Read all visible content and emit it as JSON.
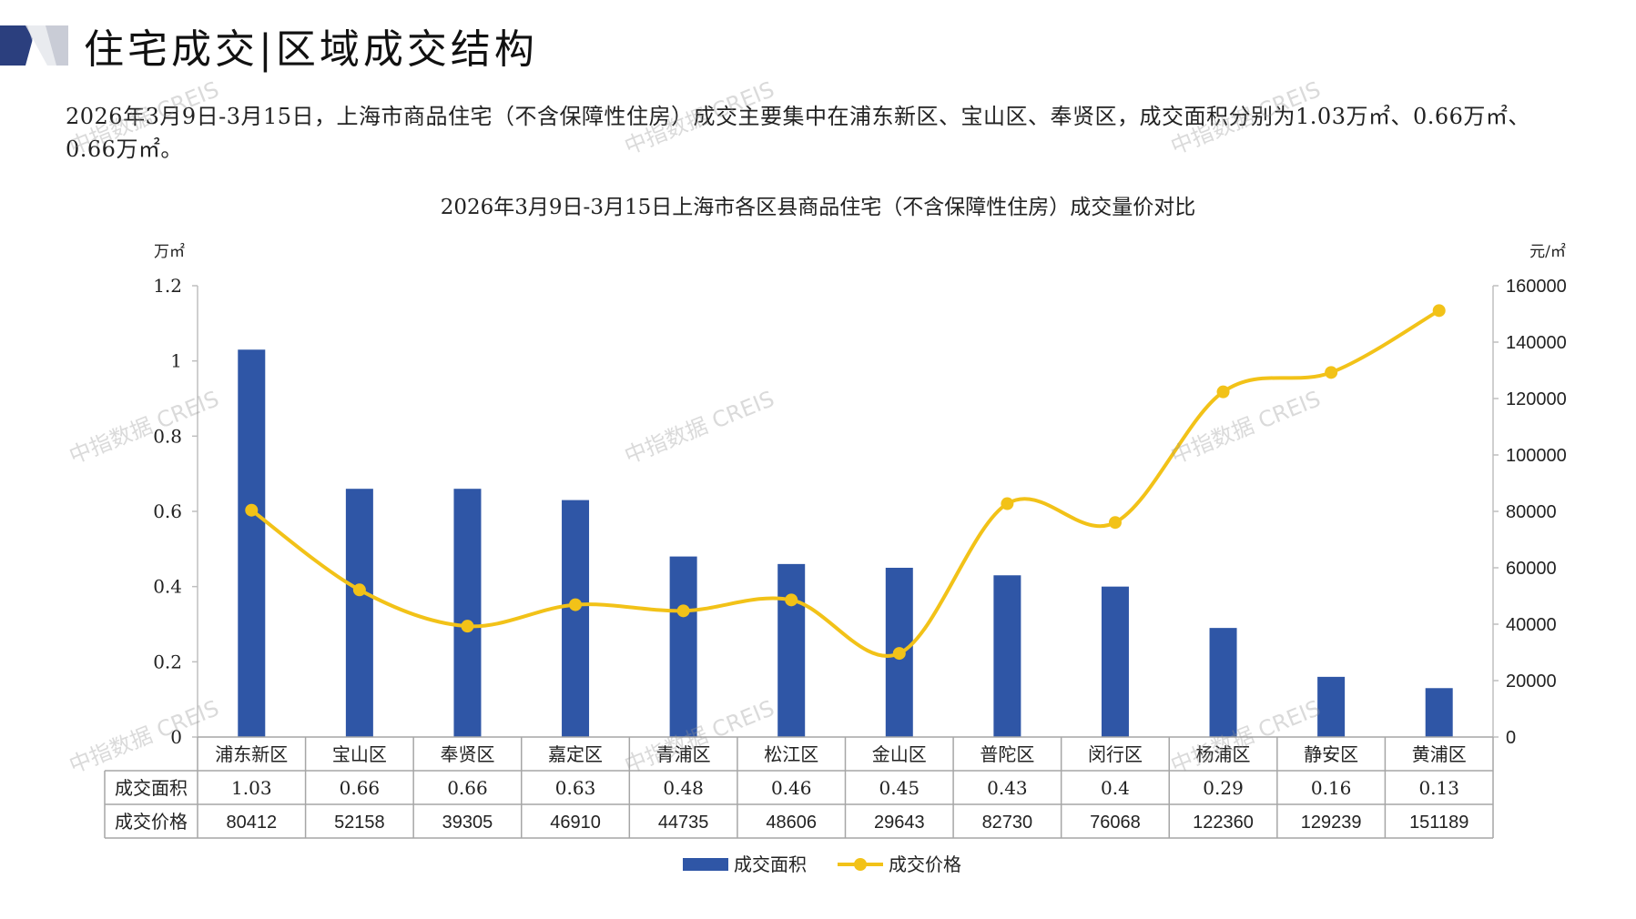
{
  "header": {
    "title": "住宅成交|区域成交结构"
  },
  "description": "2026年3月9日-3月15日，上海市商品住宅（不含保障性住房）成交主要集中在浦东新区、宝山区、奉贤区，成交面积分别为1.03万㎡、0.66万㎡、0.66万㎡。",
  "watermark": "中指数据 CREIS",
  "colors": {
    "bar": "#2f56a6",
    "line": "#f2c218",
    "logo_dark": "#2b3f7e",
    "logo_light": "#c9ccd6"
  },
  "chart_data": {
    "type": "bar",
    "title": "2026年3月9日-3月15日上海市各区县商品住宅（不含保障性住房）成交量价对比",
    "categories": [
      "浦东新区",
      "宝山区",
      "奉贤区",
      "嘉定区",
      "青浦区",
      "松江区",
      "金山区",
      "普陀区",
      "闵行区",
      "杨浦区",
      "静安区",
      "黄浦区"
    ],
    "y_left": {
      "unit": "万㎡",
      "ticks": [
        "0",
        "0.2",
        "0.4",
        "0.6",
        "0.8",
        "1",
        "1.2"
      ],
      "range": [
        0,
        1.2
      ]
    },
    "y_right": {
      "unit": "元/㎡",
      "ticks": [
        "0",
        "20000",
        "40000",
        "60000",
        "80000",
        "100000",
        "120000",
        "140000",
        "160000"
      ],
      "range": [
        0,
        160000
      ]
    },
    "series": [
      {
        "name": "成交面积",
        "type": "bar",
        "axis": "left",
        "values": [
          1.03,
          0.66,
          0.66,
          0.63,
          0.48,
          0.46,
          0.45,
          0.43,
          0.4,
          0.29,
          0.16,
          0.13
        ],
        "labels": [
          "1.03",
          "0.66",
          "0.66",
          "0.63",
          "0.48",
          "0.46",
          "0.45",
          "0.43",
          "0.4",
          "0.29",
          "0.16",
          "0.13"
        ]
      },
      {
        "name": "成交价格",
        "type": "line",
        "axis": "right",
        "smooth": true,
        "values": [
          80412,
          52158,
          39305,
          46910,
          44735,
          48606,
          29643,
          82730,
          76068,
          122360,
          129239,
          151189
        ],
        "labels": [
          "80412",
          "52158",
          "39305",
          "46910",
          "44735",
          "48606",
          "29643",
          "82730",
          "76068",
          "122360",
          "129239",
          "151189"
        ]
      }
    ],
    "legend": "bottom-center",
    "grid": false
  }
}
